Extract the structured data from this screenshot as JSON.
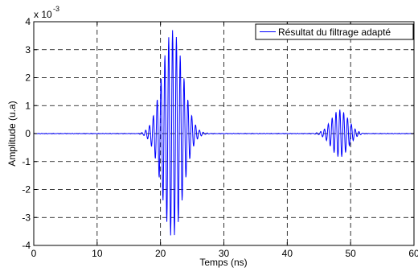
{
  "chart_data": {
    "type": "line",
    "title": "",
    "xlabel": "Temps (ns)",
    "ylabel": "Amplitude (u.a)",
    "xlim": [
      0,
      60
    ],
    "ylim": [
      -4,
      4
    ],
    "y_exponent_label": "x 10",
    "y_exponent_power": "-3",
    "x_ticks": [
      0,
      10,
      20,
      30,
      40,
      50,
      60
    ],
    "x_tick_labels": [
      "0",
      "10",
      "20",
      "30",
      "40",
      "50",
      "60"
    ],
    "y_ticks": [
      -4,
      -3,
      -2,
      -1,
      0,
      1,
      2,
      3,
      4
    ],
    "y_tick_labels": [
      "-4",
      "-3",
      "-2",
      "-1",
      "0",
      "1",
      "2",
      "3",
      "4"
    ],
    "grid": true,
    "grid_style": "dashed",
    "legend_position": "top-right",
    "series": [
      {
        "name": "Résultat du filtrage adapté",
        "color": "#0000ff",
        "description_of_shape": "oscillating pulses",
        "packets": [
          {
            "center_ns": 21.9,
            "width_ns": 2.3,
            "peak_amplitude": 3.7,
            "frequency_ghz": 1.65
          },
          {
            "center_ns": 48.3,
            "width_ns": 1.9,
            "peak_amplitude": 0.85,
            "frequency_ghz": 1.65
          }
        ],
        "sample_step_ns": 0.05
      }
    ]
  }
}
